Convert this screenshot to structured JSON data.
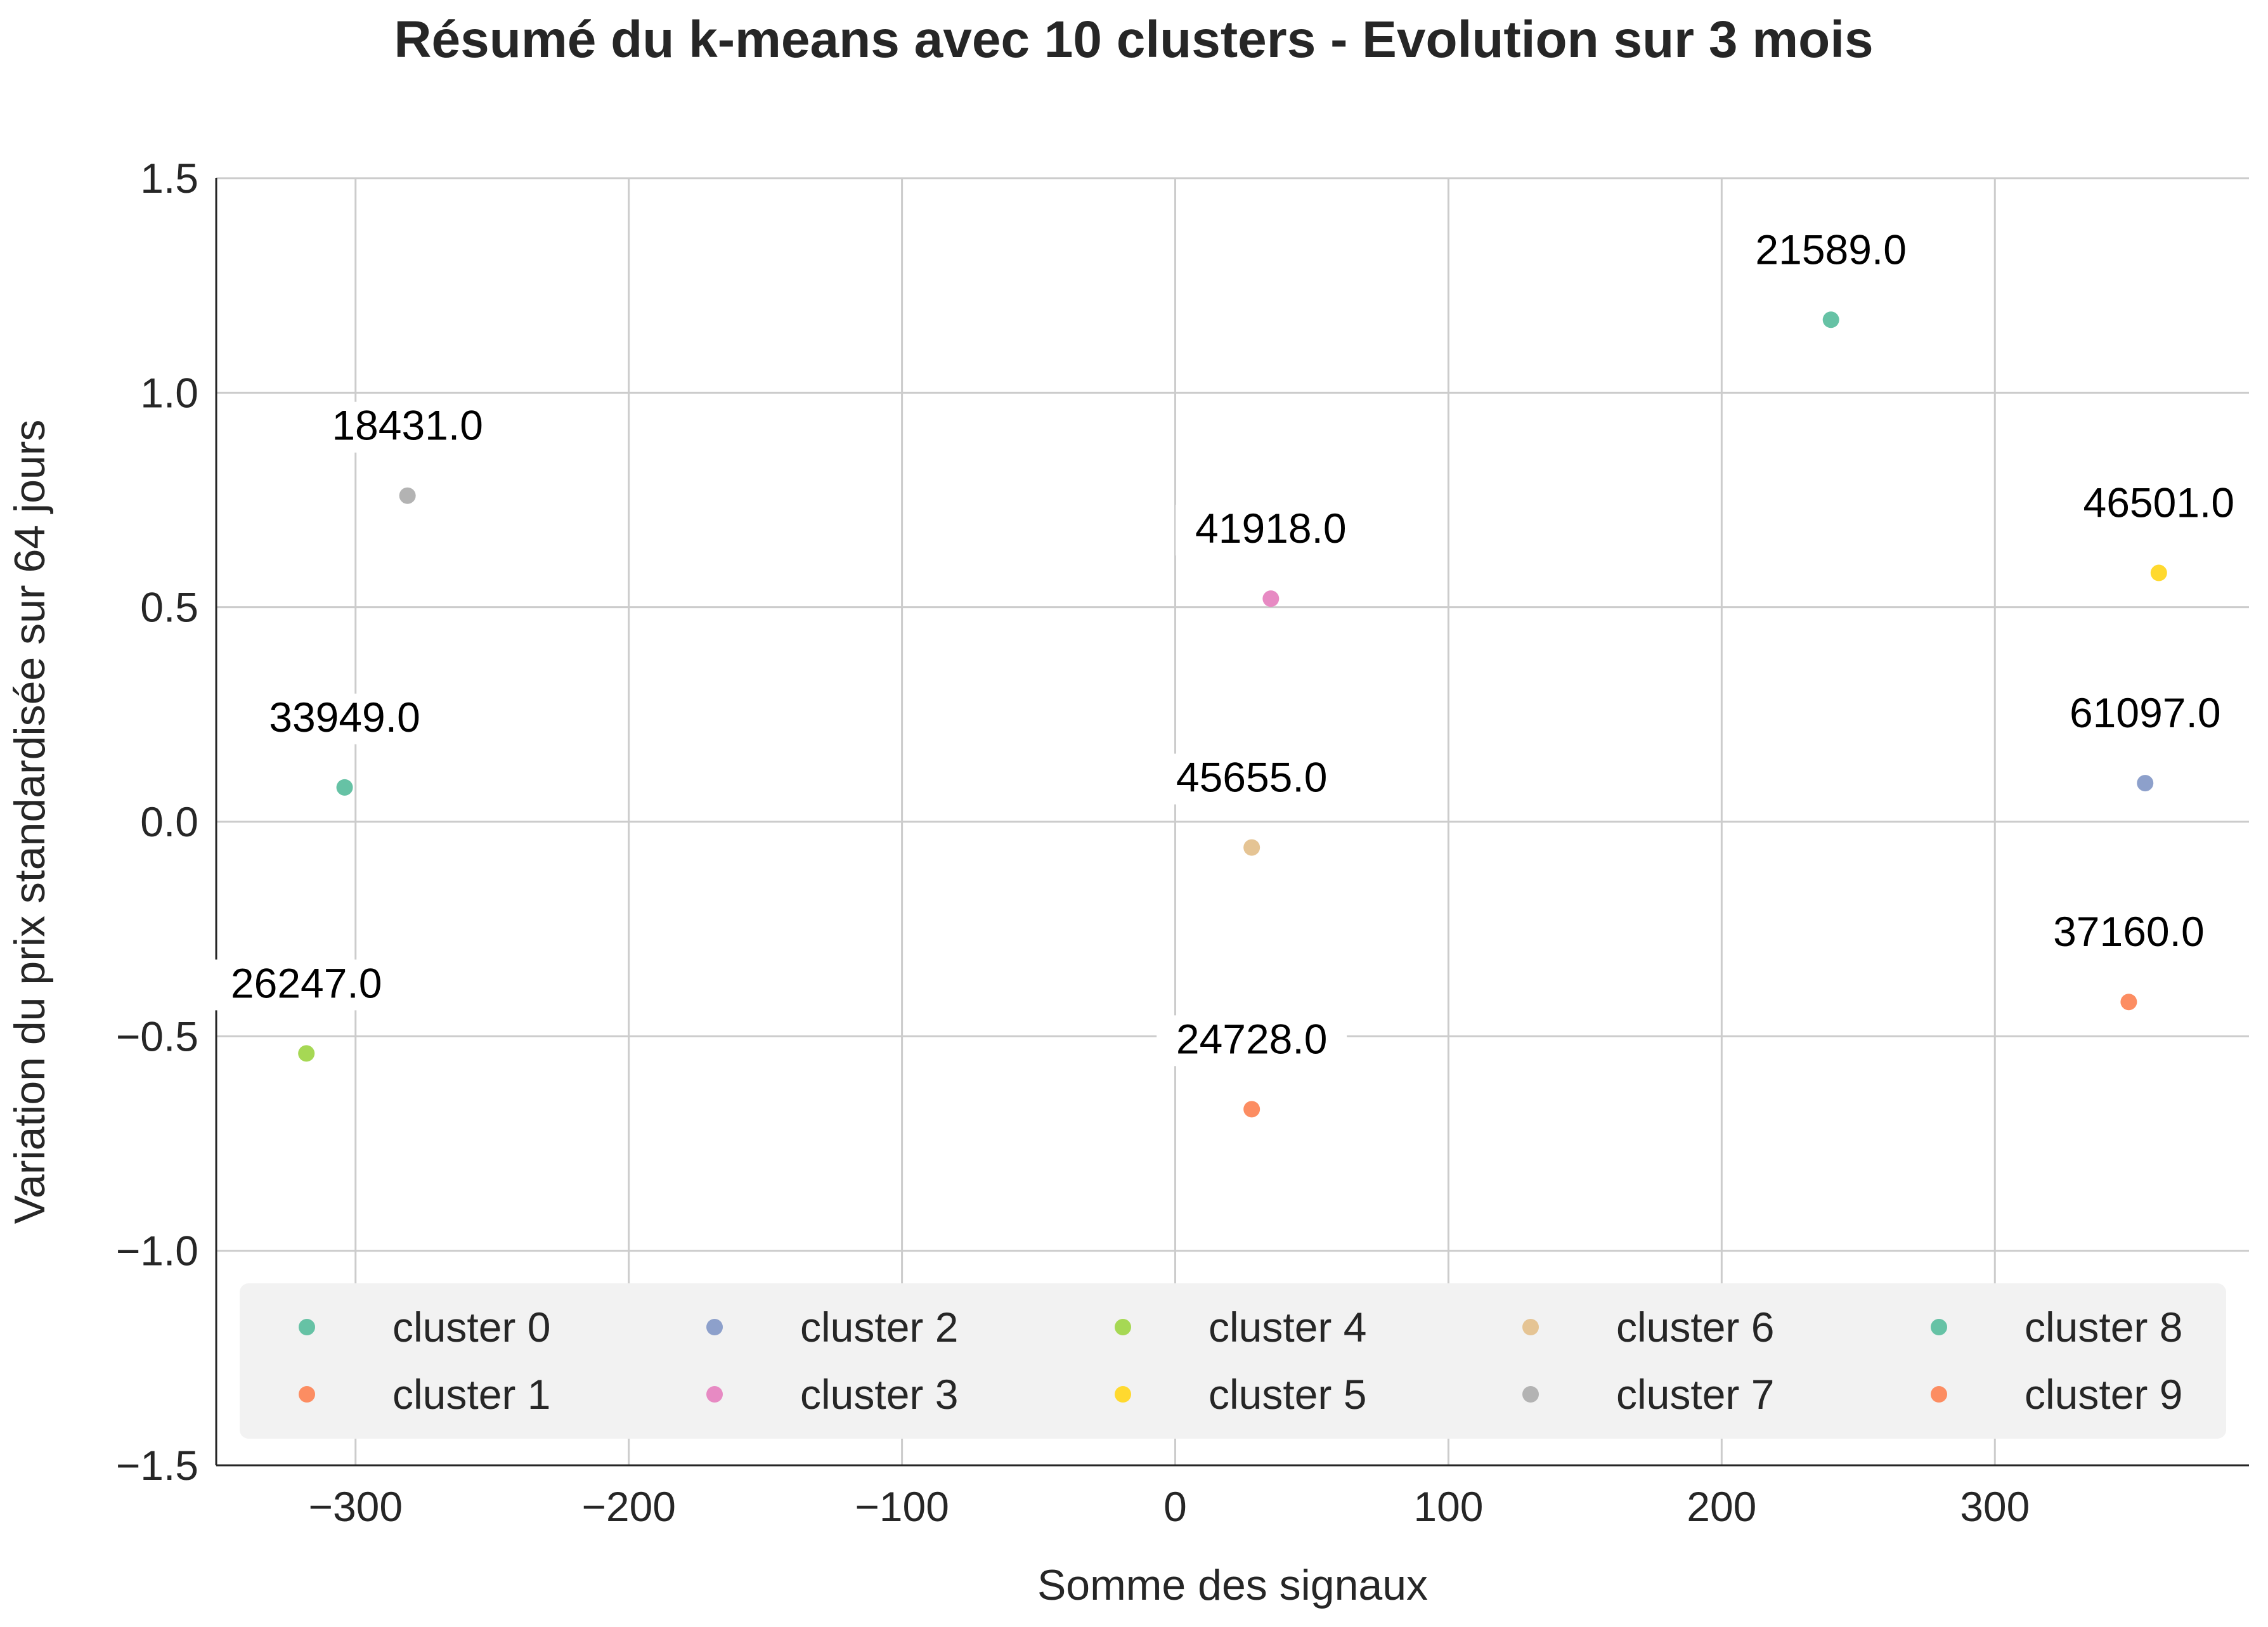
{
  "chart_data": {
    "type": "scatter",
    "title": "Résumé du k-means avec 10 clusters - Evolution sur 3 mois",
    "xlabel": "Somme des signaux",
    "ylabel": "Variation du prix standardisée sur 64 jours",
    "xlim": [
      -351,
      393
    ],
    "ylim": [
      -1.5,
      1.5
    ],
    "xticks": [
      -300,
      -200,
      -100,
      0,
      100,
      200,
      300
    ],
    "xtick_labels": [
      "−300",
      "−200",
      "−100",
      "0",
      "100",
      "200",
      "300"
    ],
    "yticks": [
      -1.5,
      -1.0,
      -0.5,
      0.0,
      0.5,
      1.0,
      1.5
    ],
    "ytick_labels": [
      "−1.5",
      "−1.0",
      "−0.5",
      "0.0",
      "0.5",
      "1.0",
      "1.5"
    ],
    "grid": true,
    "legend_position": "bottom",
    "series": [
      {
        "name": "cluster 0",
        "color": "#66c2a5",
        "x": -304,
        "y": 0.08,
        "label": "33949.0"
      },
      {
        "name": "cluster 1",
        "color": "#fc8d62",
        "x": 28,
        "y": -0.67,
        "label": "24728.0"
      },
      {
        "name": "cluster 2",
        "color": "#8da0cb",
        "x": 355,
        "y": 0.09,
        "label": "61097.0"
      },
      {
        "name": "cluster 3",
        "color": "#e78ac3",
        "x": 35,
        "y": 0.52,
        "label": "41918.0"
      },
      {
        "name": "cluster 4",
        "color": "#a6d854",
        "x": -318,
        "y": -0.54,
        "label": "26247.0"
      },
      {
        "name": "cluster 5",
        "color": "#ffd92f",
        "x": 360,
        "y": 0.58,
        "label": "46501.0"
      },
      {
        "name": "cluster 6",
        "color": "#e5c494",
        "x": 28,
        "y": -0.06,
        "label": "45655.0"
      },
      {
        "name": "cluster 7",
        "color": "#b3b3b3",
        "x": -281,
        "y": 0.76,
        "label": "18431.0"
      },
      {
        "name": "cluster 8",
        "color": "#66c2a5",
        "x": 240,
        "y": 1.17,
        "label": "21589.0"
      },
      {
        "name": "cluster 9",
        "color": "#fc8d62",
        "x": 349,
        "y": -0.42,
        "label": "37160.0"
      }
    ]
  }
}
